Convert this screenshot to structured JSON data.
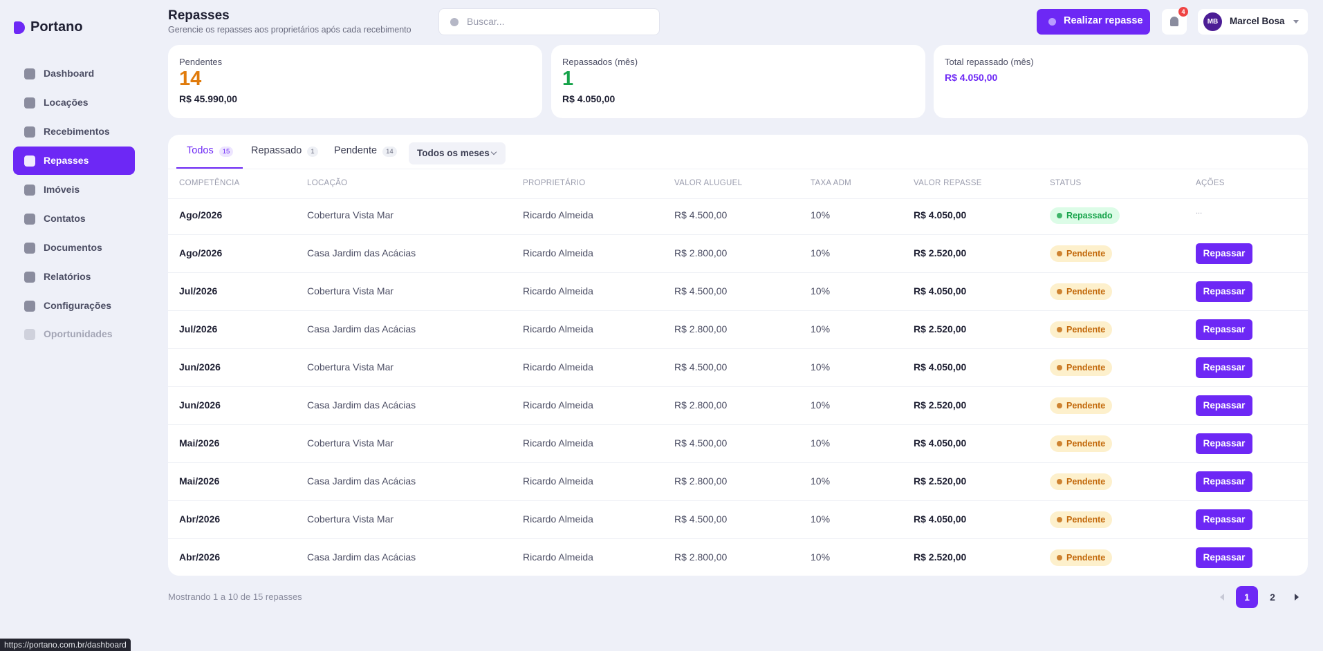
{
  "sidebar": {
    "brand": "Portano",
    "nav": [
      {
        "label": "Dashboard"
      },
      {
        "label": "Locações"
      },
      {
        "label": "Recebimentos"
      },
      {
        "label": "Repasses",
        "active": true
      },
      {
        "label": "Imóveis"
      },
      {
        "label": "Contatos"
      },
      {
        "label": "Documentos"
      },
      {
        "label": "Relatórios"
      },
      {
        "label": "Configurações"
      },
      {
        "label": "Oportunidades",
        "muted": true
      }
    ]
  },
  "header": {
    "title": "Repasses",
    "subtitle": "Gerencie os repasses aos proprietários após cada recebimento",
    "search_placeholder": "Buscar...",
    "primary_button": "Realizar repasse",
    "notifications": "4",
    "user_initials": "MB",
    "user_name": "Marcel Bosa"
  },
  "cards": [
    {
      "label": "Pendentes",
      "value": "14",
      "value_color": "#e07b0c",
      "sub": "R$ 45.990,00"
    },
    {
      "label": "Repassados (mês)",
      "value": "1",
      "value_color": "#16a34a",
      "sub": "R$ 4.050,00"
    },
    {
      "label": "Total repassado (mês)",
      "sub": "R$ 4.050,00",
      "sub_color": "#6d28f5"
    }
  ],
  "tabs": [
    {
      "label": "Todos",
      "count": "15",
      "active": true
    },
    {
      "label": "Repassado",
      "count": "1"
    },
    {
      "label": "Pendente",
      "count": "14"
    }
  ],
  "filter": "Todos os meses",
  "table": {
    "columns": [
      "COMPETÊNCIA",
      "LOCAÇÃO",
      "PROPRIETÁRIO",
      "VALOR ALUGUEL",
      "TAXA ADM",
      "VALOR REPASSE",
      "STATUS",
      "AÇÕES"
    ],
    "rows": [
      [
        "Ago/2026",
        "Cobertura Vista Mar",
        "Ricardo Almeida",
        "R$ 4.500,00",
        "10%",
        "R$ 4.050,00",
        {
          "label": "Repassado",
          "color": "#16a34a",
          "bg": "#dcfce7"
        },
        {
          "label": "...",
          "style": "menu"
        }
      ],
      [
        "Ago/2026",
        "Casa Jardim das Acácias",
        "Ricardo Almeida",
        "R$ 2.800,00",
        "10%",
        "R$ 2.520,00",
        {
          "label": "Pendente",
          "color": "#c2680a",
          "bg": "#fdf0cc"
        },
        {
          "label": "Repassar",
          "style": "button"
        }
      ],
      [
        "Jul/2026",
        "Cobertura Vista Mar",
        "Ricardo Almeida",
        "R$ 4.500,00",
        "10%",
        "R$ 4.050,00",
        {
          "label": "Pendente",
          "color": "#c2680a",
          "bg": "#fdf0cc"
        },
        {
          "label": "Repassar",
          "style": "button"
        }
      ],
      [
        "Jul/2026",
        "Casa Jardim das Acácias",
        "Ricardo Almeida",
        "R$ 2.800,00",
        "10%",
        "R$ 2.520,00",
        {
          "label": "Pendente",
          "color": "#c2680a",
          "bg": "#fdf0cc"
        },
        {
          "label": "Repassar",
          "style": "button"
        }
      ],
      [
        "Jun/2026",
        "Cobertura Vista Mar",
        "Ricardo Almeida",
        "R$ 4.500,00",
        "10%",
        "R$ 4.050,00",
        {
          "label": "Pendente",
          "color": "#c2680a",
          "bg": "#fdf0cc"
        },
        {
          "label": "Repassar",
          "style": "button"
        }
      ],
      [
        "Jun/2026",
        "Casa Jardim das Acácias",
        "Ricardo Almeida",
        "R$ 2.800,00",
        "10%",
        "R$ 2.520,00",
        {
          "label": "Pendente",
          "color": "#c2680a",
          "bg": "#fdf0cc"
        },
        {
          "label": "Repassar",
          "style": "button"
        }
      ],
      [
        "Mai/2026",
        "Cobertura Vista Mar",
        "Ricardo Almeida",
        "R$ 4.500,00",
        "10%",
        "R$ 4.050,00",
        {
          "label": "Pendente",
          "color": "#c2680a",
          "bg": "#fdf0cc"
        },
        {
          "label": "Repassar",
          "style": "button"
        }
      ],
      [
        "Mai/2026",
        "Casa Jardim das Acácias",
        "Ricardo Almeida",
        "R$ 2.800,00",
        "10%",
        "R$ 2.520,00",
        {
          "label": "Pendente",
          "color": "#c2680a",
          "bg": "#fdf0cc"
        },
        {
          "label": "Repassar",
          "style": "button"
        }
      ],
      [
        "Abr/2026",
        "Cobertura Vista Mar",
        "Ricardo Almeida",
        "R$ 4.500,00",
        "10%",
        "R$ 4.050,00",
        {
          "label": "Pendente",
          "color": "#c2680a",
          "bg": "#fdf0cc"
        },
        {
          "label": "Repassar",
          "style": "button"
        }
      ],
      [
        "Abr/2026",
        "Casa Jardim das Acácias",
        "Ricardo Almeida",
        "R$ 2.800,00",
        "10%",
        "R$ 2.520,00",
        {
          "label": "Pendente",
          "color": "#c2680a",
          "bg": "#fdf0cc"
        },
        {
          "label": "Repassar",
          "style": "button"
        }
      ]
    ]
  },
  "footer": {
    "summary": "Mostrando 1 a 10 de 15 repasses",
    "pages": [
      {
        "label": "1",
        "active": true
      },
      {
        "label": "2"
      }
    ]
  },
  "status_url": "https://portano.com.br/dashboard"
}
